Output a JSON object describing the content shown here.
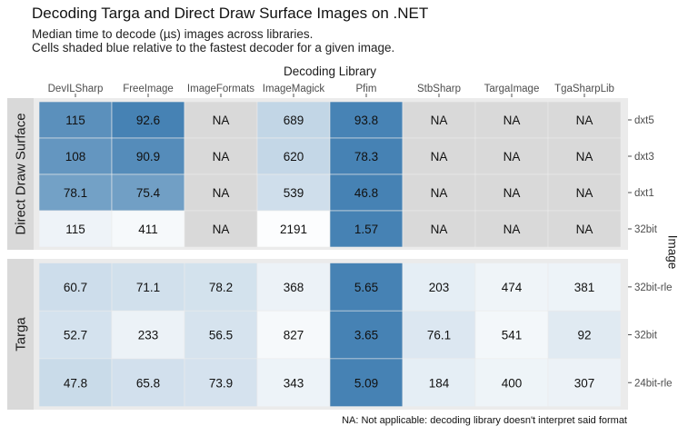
{
  "title": "Decoding Targa and Direct Draw Surface Images on .NET",
  "subtitle_lines": [
    "Median time to decode (µs) images across libraries.",
    "Cells shaded blue relative to the fastest decoder for a given image."
  ],
  "caption": "NA: Not applicable: decoding library doesn't interpret said format",
  "colors": {
    "panel_bg": "#ebebeb",
    "strip_bg": "#d9d9d9",
    "na_fill": "#d9d9d9",
    "fill_low": "#ffffff",
    "fill_high": "#4682b4"
  },
  "chart_data": {
    "type": "heatmap",
    "title": "Decoding Targa and Direct Draw Surface Images on .NET",
    "xlabel": "Decoding Library",
    "ylabel": "Image",
    "x_axis_position": "top",
    "y_axis_position": "right",
    "na_label": "NA",
    "libraries": [
      "DevILSharp",
      "FreeImage",
      "ImageFormats",
      "ImageMagick",
      "Pfim",
      "StbSharp",
      "TargaImage",
      "TgaSharpLib"
    ],
    "facets": [
      {
        "name": "Direct Draw Surface",
        "images": [
          "dxt5",
          "dxt3",
          "dxt1",
          "32bit"
        ],
        "values": [
          [
            115,
            92.6,
            null,
            689,
            93.8,
            null,
            null,
            null
          ],
          [
            108,
            90.9,
            null,
            620,
            78.3,
            null,
            null,
            null
          ],
          [
            78.1,
            75.4,
            null,
            539,
            46.8,
            null,
            null,
            null
          ],
          [
            115,
            411,
            null,
            2191,
            1.57,
            null,
            null,
            null
          ]
        ]
      },
      {
        "name": "Targa",
        "images": [
          "32bit-rle",
          "32bit",
          "24bit-rle"
        ],
        "values": [
          [
            60.7,
            71.1,
            78.2,
            368,
            5.65,
            203,
            474,
            381
          ],
          [
            52.7,
            233,
            56.5,
            827,
            3.65,
            76.1,
            541,
            92
          ],
          [
            47.8,
            65.8,
            73.9,
            343,
            5.09,
            184,
            400,
            307
          ]
        ]
      }
    ]
  }
}
